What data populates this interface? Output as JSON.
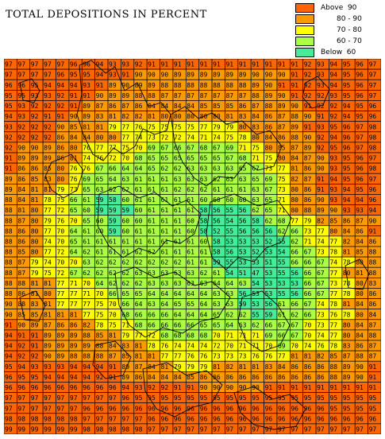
{
  "title": "TOTAL DEPOSITIONS IN PERCENT",
  "legend": [
    {
      "label": "Above  90",
      "color": "#ff6600"
    },
    {
      "label": "80 - 90",
      "color": "#ff9900"
    },
    {
      "label": "70 - 80",
      "color": "#ffff00"
    },
    {
      "label": "60 - 70",
      "color": "#aaff44"
    },
    {
      "label": "Below  60",
      "color": "#44ee99"
    }
  ],
  "grid": {
    "rows": [
      [
        97,
        97,
        97,
        97,
        97,
        96,
        96,
        94,
        93,
        93,
        92,
        91,
        91,
        91,
        91,
        91,
        91,
        91,
        91,
        91,
        91,
        91,
        91,
        92,
        93,
        94,
        95,
        96,
        97
      ],
      [
        97,
        97,
        97,
        97,
        96,
        95,
        95,
        94,
        93,
        91,
        90,
        90,
        90,
        89,
        89,
        89,
        89,
        89,
        89,
        90,
        90,
        90,
        91,
        92,
        93,
        94,
        95,
        96,
        97
      ],
      [
        96,
        96,
        95,
        94,
        94,
        94,
        93,
        91,
        89,
        90,
        89,
        89,
        88,
        88,
        88,
        88,
        88,
        88,
        88,
        89,
        90,
        91,
        91,
        92,
        93,
        94,
        95,
        96,
        97
      ],
      [
        95,
        95,
        93,
        93,
        92,
        91,
        91,
        90,
        89,
        89,
        88,
        88,
        87,
        87,
        87,
        87,
        87,
        87,
        87,
        88,
        89,
        90,
        91,
        92,
        92,
        93,
        95,
        96,
        97
      ],
      [
        95,
        93,
        92,
        92,
        92,
        91,
        89,
        87,
        86,
        87,
        86,
        84,
        84,
        84,
        84,
        85,
        85,
        85,
        86,
        87,
        88,
        89,
        90,
        91,
        92,
        92,
        94,
        95,
        96
      ],
      [
        94,
        93,
        92,
        91,
        91,
        90,
        89,
        83,
        81,
        82,
        82,
        81,
        80,
        80,
        80,
        80,
        80,
        81,
        83,
        84,
        86,
        87,
        88,
        90,
        91,
        92,
        94,
        95,
        96
      ],
      [
        93,
        92,
        92,
        92,
        90,
        85,
        81,
        81,
        79,
        77,
        76,
        75,
        75,
        75,
        75,
        77,
        79,
        79,
        80,
        83,
        86,
        87,
        89,
        91,
        93,
        95,
        96,
        97,
        98
      ],
      [
        92,
        92,
        92,
        92,
        86,
        84,
        84,
        80,
        80,
        77,
        74,
        73,
        72,
        72,
        74,
        71,
        74,
        75,
        78,
        80,
        84,
        86,
        88,
        90,
        92,
        94,
        96,
        97,
        98
      ],
      [
        92,
        90,
        90,
        89,
        86,
        80,
        76,
        77,
        77,
        75,
        70,
        69,
        67,
        66,
        67,
        68,
        67,
        69,
        71,
        75,
        80,
        85,
        87,
        89,
        92,
        95,
        96,
        97,
        98
      ],
      [
        91,
        89,
        89,
        89,
        86,
        81,
        74,
        76,
        72,
        70,
        68,
        65,
        65,
        65,
        65,
        65,
        65,
        67,
        68,
        71,
        75,
        80,
        84,
        87,
        90,
        93,
        95,
        96,
        97
      ],
      [
        91,
        86,
        86,
        85,
        80,
        76,
        76,
        67,
        66,
        64,
        64,
        65,
        62,
        62,
        63,
        63,
        63,
        63,
        65,
        67,
        73,
        77,
        81,
        86,
        90,
        93,
        95,
        96,
        98
      ],
      [
        89,
        86,
        85,
        83,
        80,
        76,
        69,
        65,
        64,
        63,
        61,
        61,
        61,
        63,
        63,
        63,
        62,
        63,
        63,
        65,
        69,
        75,
        82,
        87,
        91,
        94,
        95,
        96,
        97
      ],
      [
        89,
        84,
        81,
        81,
        79,
        73,
        65,
        63,
        62,
        62,
        61,
        61,
        61,
        62,
        62,
        62,
        61,
        61,
        61,
        63,
        67,
        73,
        80,
        86,
        91,
        93,
        94,
        95,
        96
      ],
      [
        88,
        84,
        81,
        78,
        75,
        66,
        61,
        59,
        58,
        60,
        61,
        61,
        61,
        61,
        61,
        60,
        60,
        60,
        60,
        63,
        65,
        71,
        80,
        86,
        90,
        93,
        94,
        94,
        96
      ],
      [
        88,
        81,
        80,
        77,
        72,
        65,
        60,
        59,
        59,
        59,
        60,
        61,
        61,
        61,
        61,
        58,
        56,
        55,
        56,
        62,
        65,
        71,
        80,
        88,
        89,
        90,
        93,
        93,
        94
      ],
      [
        88,
        87,
        80,
        79,
        76,
        70,
        65,
        60,
        59,
        60,
        60,
        61,
        61,
        61,
        60,
        58,
        56,
        54,
        56,
        58,
        62,
        68,
        77,
        79,
        82,
        85,
        86,
        87,
        90
      ],
      [
        88,
        86,
        80,
        77,
        70,
        64,
        61,
        60,
        59,
        60,
        61,
        61,
        61,
        61,
        60,
        58,
        52,
        55,
        56,
        56,
        56,
        62,
        66,
        73,
        77,
        80,
        84,
        86,
        91
      ],
      [
        88,
        86,
        80,
        74,
        70,
        65,
        61,
        61,
        61,
        61,
        61,
        61,
        61,
        61,
        61,
        60,
        58,
        53,
        53,
        53,
        52,
        55,
        62,
        71,
        74,
        77,
        82,
        84,
        86
      ],
      [
        88,
        85,
        80,
        77,
        72,
        64,
        62,
        61,
        61,
        61,
        62,
        62,
        61,
        61,
        61,
        61,
        58,
        56,
        53,
        52,
        53,
        54,
        66,
        67,
        73,
        78,
        81,
        85,
        88
      ],
      [
        88,
        87,
        79,
        74,
        70,
        70,
        63,
        62,
        62,
        62,
        62,
        62,
        62,
        62,
        61,
        61,
        59,
        55,
        53,
        53,
        51,
        55,
        66,
        66,
        67,
        74,
        78,
        80,
        88
      ],
      [
        88,
        87,
        79,
        75,
        72,
        67,
        62,
        62,
        62,
        62,
        63,
        63,
        63,
        63,
        63,
        62,
        61,
        54,
        51,
        47,
        53,
        55,
        56,
        66,
        67,
        77,
        80,
        81,
        88
      ],
      [
        88,
        88,
        81,
        81,
        77,
        71,
        70,
        64,
        62,
        62,
        62,
        63,
        63,
        63,
        63,
        63,
        64,
        64,
        63,
        54,
        53,
        53,
        53,
        66,
        67,
        73,
        78,
        80,
        83
      ],
      [
        88,
        86,
        81,
        80,
        77,
        77,
        71,
        70,
        66,
        65,
        65,
        64,
        64,
        64,
        64,
        64,
        63,
        63,
        56,
        53,
        53,
        55,
        56,
        66,
        67,
        77,
        78,
        80,
        86
      ],
      [
        90,
        88,
        83,
        81,
        77,
        77,
        77,
        75,
        70,
        66,
        64,
        63,
        64,
        65,
        65,
        64,
        63,
        63,
        59,
        53,
        56,
        61,
        66,
        67,
        74,
        78,
        81,
        84,
        86
      ],
      [
        90,
        85,
        85,
        81,
        81,
        81,
        77,
        75,
        70,
        68,
        66,
        66,
        66,
        64,
        64,
        64,
        65,
        62,
        62,
        55,
        59,
        61,
        62,
        66,
        73,
        76,
        78,
        80,
        84
      ],
      [
        91,
        90,
        89,
        87,
        86,
        86,
        82,
        78,
        75,
        71,
        68,
        66,
        66,
        66,
        66,
        65,
        65,
        64,
        63,
        62,
        66,
        67,
        67,
        70,
        73,
        77,
        80,
        84,
        87
      ],
      [
        94,
        91,
        91,
        89,
        89,
        89,
        88,
        85,
        81,
        79,
        77,
        72,
        68,
        68,
        68,
        68,
        70,
        71,
        71,
        71,
        69,
        66,
        67,
        70,
        74,
        77,
        80,
        84,
        88
      ],
      [
        94,
        92,
        91,
        89,
        89,
        89,
        89,
        88,
        84,
        83,
        81,
        78,
        76,
        74,
        74,
        74,
        72,
        70,
        71,
        71,
        70,
        69,
        70,
        74,
        76,
        78,
        83,
        86,
        87
      ],
      [
        94,
        92,
        92,
        90,
        89,
        88,
        88,
        88,
        87,
        85,
        81,
        81,
        77,
        77,
        76,
        76,
        73,
        73,
        73,
        76,
        76,
        77,
        81,
        81,
        82,
        85,
        87,
        88,
        87
      ],
      [
        95,
        94,
        93,
        93,
        93,
        94,
        94,
        94,
        91,
        89,
        87,
        84,
        81,
        79,
        79,
        79,
        81,
        82,
        81,
        81,
        83,
        84,
        86,
        86,
        86,
        88,
        89,
        90,
        91
      ],
      [
        96,
        95,
        95,
        94,
        94,
        94,
        94,
        92,
        91,
        89,
        86,
        84,
        84,
        84,
        85,
        86,
        86,
        86,
        86,
        86,
        86,
        86,
        86,
        86,
        86,
        88,
        89,
        90,
        91
      ],
      [
        96,
        96,
        96,
        96,
        96,
        96,
        96,
        96,
        96,
        94,
        93,
        92,
        92,
        91,
        91,
        90,
        90,
        90,
        90,
        90,
        91,
        91,
        91,
        91,
        91,
        91,
        91,
        91,
        91
      ],
      [
        97,
        97,
        97,
        97,
        97,
        97,
        97,
        97,
        97,
        96,
        95,
        95,
        95,
        95,
        95,
        95,
        95,
        95,
        95,
        95,
        95,
        95,
        95,
        95,
        95,
        95,
        95,
        95,
        95
      ],
      [
        97,
        97,
        97,
        97,
        97,
        97,
        96,
        96,
        96,
        96,
        96,
        96,
        96,
        96,
        96,
        96,
        96,
        96,
        96,
        96,
        96,
        96,
        96,
        96,
        96,
        95,
        95,
        95,
        95
      ],
      [
        98,
        98,
        98,
        98,
        98,
        98,
        97,
        97,
        97,
        97,
        97,
        96,
        96,
        96,
        96,
        96,
        96,
        96,
        96,
        96,
        96,
        96,
        96,
        96,
        96,
        96,
        96,
        96,
        96
      ],
      [
        99,
        99,
        99,
        99,
        99,
        99,
        98,
        98,
        98,
        98,
        98,
        97,
        97,
        97,
        97,
        97,
        97,
        97,
        97,
        97,
        97,
        97,
        97,
        97,
        97,
        97,
        97,
        97,
        97
      ]
    ]
  }
}
